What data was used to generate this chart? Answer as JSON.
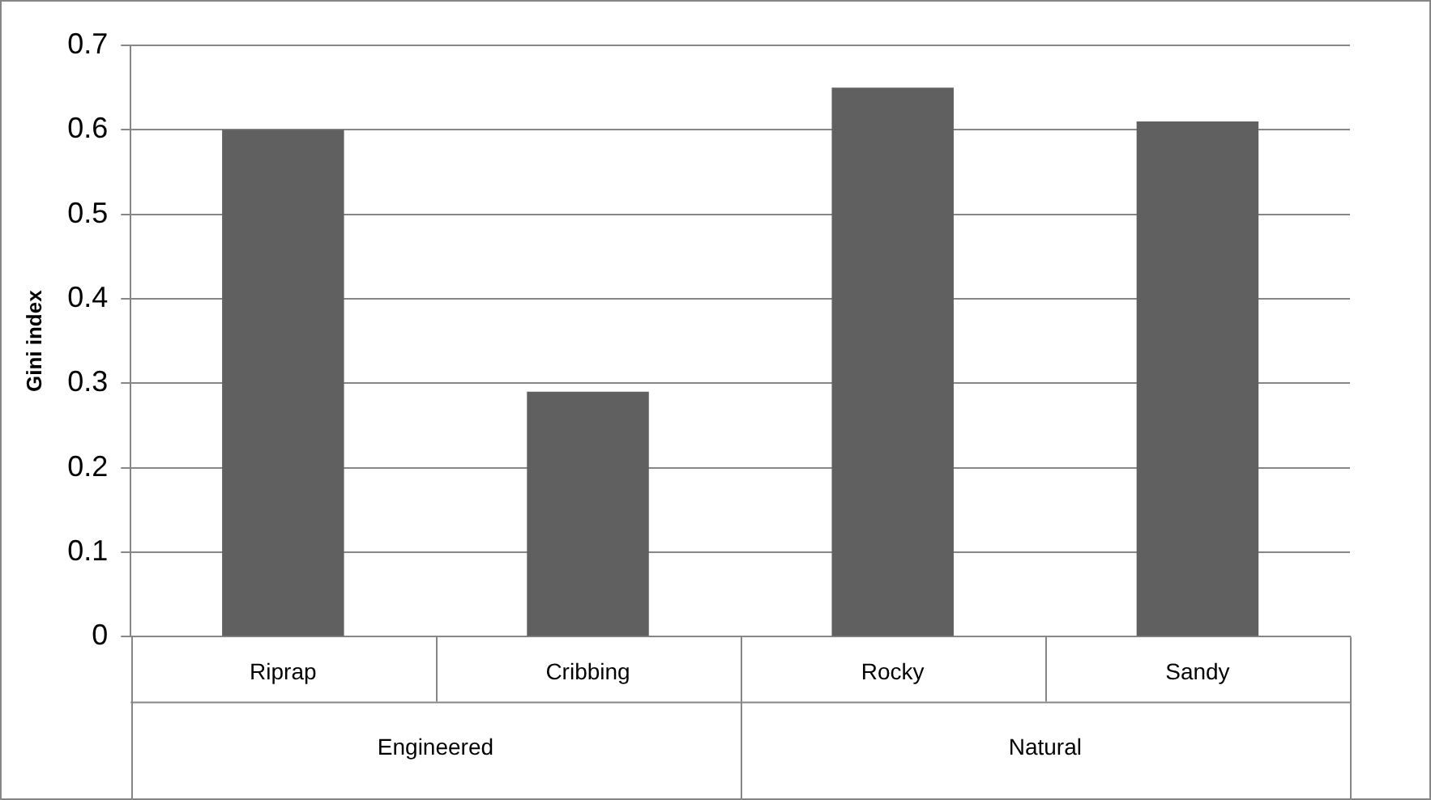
{
  "chart_data": {
    "type": "bar",
    "ylabel": "Gini index",
    "categories": [
      "Riprap",
      "Cribbing",
      "Rocky",
      "Sandy"
    ],
    "values": [
      0.6,
      0.29,
      0.65,
      0.61
    ],
    "color": "#606060",
    "ylim": [
      0,
      0.7
    ],
    "yticks": [
      0,
      0.1,
      0.2,
      0.3,
      0.4,
      0.5,
      0.6,
      0.7
    ],
    "grid": "y",
    "legend": false,
    "annotations": [
      "Engineered",
      "Natural"
    ]
  }
}
